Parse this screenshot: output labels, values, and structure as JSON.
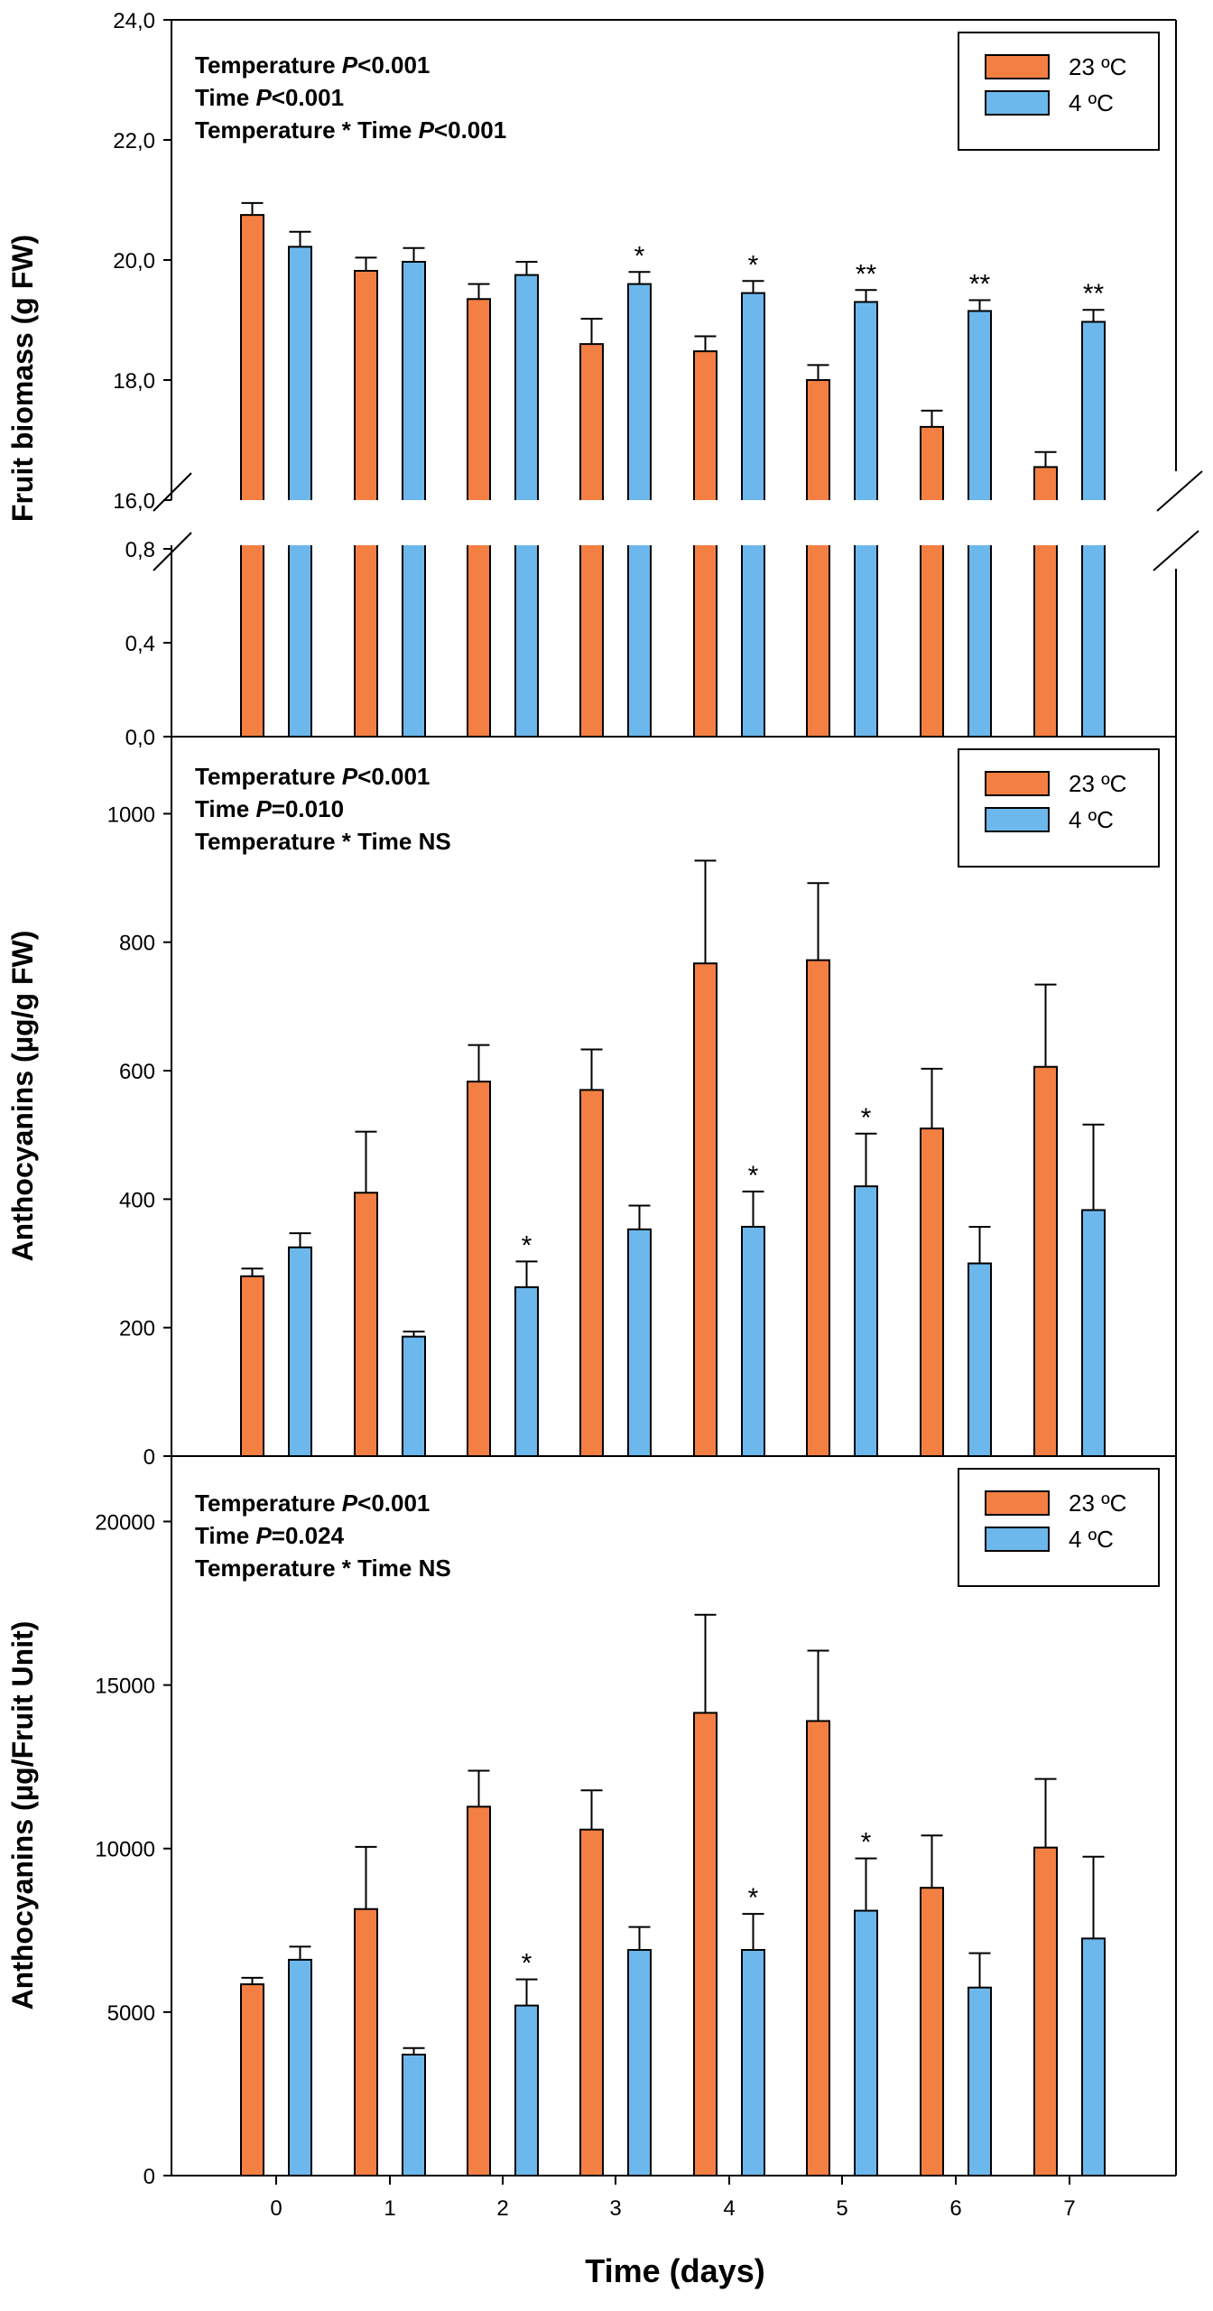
{
  "colors": {
    "c23": "#f47f43",
    "c4": "#6cb8ec",
    "axis": "#000000"
  },
  "chart_data": {
    "type": "bar",
    "xlabel": "Time (days)",
    "categories": [
      "0",
      "1",
      "2",
      "3",
      "4",
      "5",
      "6",
      "7"
    ],
    "legend_position": "top-right",
    "panels": [
      {
        "ylabel": "Fruit biomass (g FW)",
        "ylim": [
          0,
          24
        ],
        "axis_break": {
          "lower": [
            0,
            0.9
          ],
          "upper": [
            16,
            24
          ]
        },
        "yticks": [
          "24,0",
          "22,0",
          "20,0",
          "18,0",
          "16,0",
          "0,8",
          "0,4",
          "0,0"
        ],
        "stats": [
          {
            "prefix": "Temperature ",
            "p": "P",
            "rest": "<0.001"
          },
          {
            "prefix": "Time ",
            "p": "P",
            "rest": "<0.001"
          },
          {
            "prefix": "Temperature * Time ",
            "p": "P",
            "rest": "<0.001"
          }
        ],
        "legend": [
          "23 ºC",
          "4 ºC"
        ],
        "series": [
          {
            "name": "23 ºC",
            "values": [
              20.75,
              19.82,
              19.35,
              18.6,
              18.48,
              18.0,
              17.22,
              16.55
            ],
            "errors": [
              0.2,
              0.22,
              0.25,
              0.42,
              0.25,
              0.25,
              0.27,
              0.25
            ]
          },
          {
            "name": "4 ºC",
            "values": [
              20.22,
              19.97,
              19.75,
              19.6,
              19.45,
              19.3,
              19.15,
              18.97
            ],
            "errors": [
              0.25,
              0.23,
              0.22,
              0.2,
              0.2,
              0.2,
              0.18,
              0.2
            ]
          }
        ],
        "significance": [
          "",
          "",
          "",
          "*",
          "*",
          "**",
          "**",
          "**"
        ]
      },
      {
        "ylabel": "Anthocyanins (µg/g FW)",
        "ylim": [
          0,
          1120
        ],
        "yticks": [
          "1000",
          "800",
          "600",
          "400",
          "200",
          "0"
        ],
        "stats": [
          {
            "prefix": "Temperature ",
            "p": "P",
            "rest": "<0.001"
          },
          {
            "prefix": "Time ",
            "p": "P",
            "rest": "=0.010"
          },
          {
            "prefix": "Temperature * Time NS",
            "p": "",
            "rest": ""
          }
        ],
        "legend": [
          "23 ºC",
          "4 ºC"
        ],
        "series": [
          {
            "name": "23 ºC",
            "values": [
              280,
              410,
              583,
              570,
              767,
              772,
              510,
              606
            ],
            "errors": [
              12,
              95,
              57,
              63,
              160,
              120,
              93,
              128
            ]
          },
          {
            "name": "4 ºC",
            "values": [
              325,
              186,
              263,
              353,
              357,
              420,
              300,
              383
            ],
            "errors": [
              22,
              8,
              40,
              37,
              55,
              82,
              57,
              133
            ]
          }
        ],
        "significance": [
          "",
          "",
          "*",
          "",
          "*",
          "*",
          "",
          ""
        ]
      },
      {
        "ylabel": "Anthocyanins (µg/Fruit Unit)",
        "ylim": [
          0,
          22000
        ],
        "yticks": [
          "20000",
          "15000",
          "10000",
          "5000",
          "0"
        ],
        "stats": [
          {
            "prefix": "Temperature ",
            "p": "P",
            "rest": "<0.001"
          },
          {
            "prefix": "Time ",
            "p": "P",
            "rest": "=0.024"
          },
          {
            "prefix": "Temperature * Time NS",
            "p": "",
            "rest": ""
          }
        ],
        "legend": [
          "23 ºC",
          "4 ºC"
        ],
        "series": [
          {
            "name": "23 ºC",
            "values": [
              5850,
              8150,
              11280,
              10580,
              14150,
              13900,
              8800,
              10030
            ],
            "errors": [
              200,
              1900,
              1100,
              1200,
              3000,
              2150,
              1600,
              2100
            ]
          },
          {
            "name": "4 ºC",
            "values": [
              6600,
              3700,
              5200,
              6900,
              6900,
              8100,
              5750,
              7250
            ],
            "errors": [
              400,
              200,
              800,
              700,
              1100,
              1600,
              1050,
              2500
            ]
          }
        ],
        "significance": [
          "",
          "",
          "*",
          "",
          "*",
          "*",
          "",
          ""
        ]
      }
    ]
  }
}
